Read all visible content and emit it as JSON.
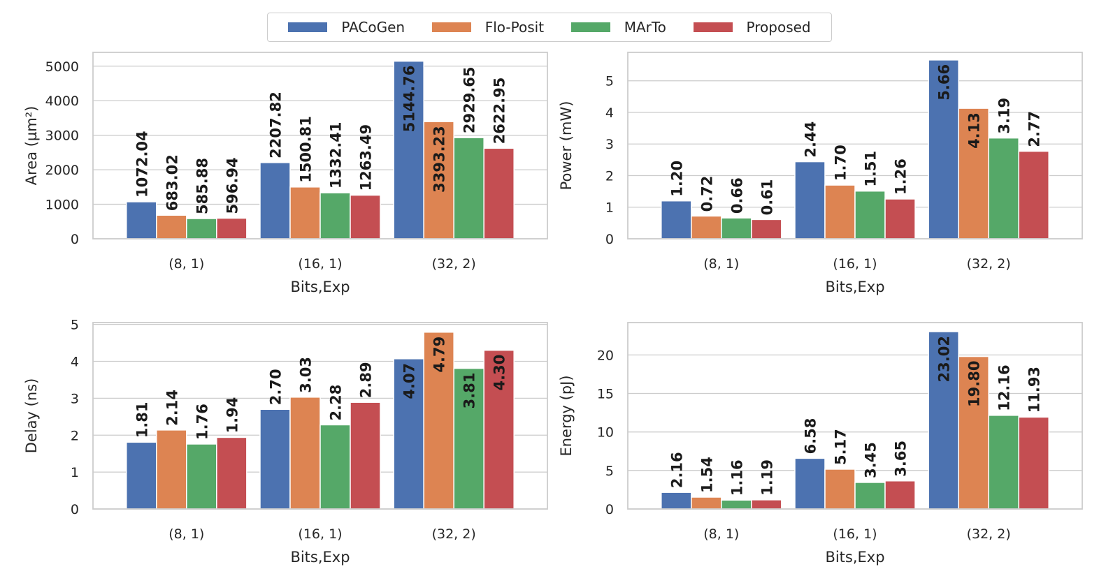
{
  "legend": {
    "items": [
      {
        "name": "PACoGen",
        "color": "#4c72b0"
      },
      {
        "name": "Flo-Posit",
        "color": "#dd8452"
      },
      {
        "name": "MArTo",
        "color": "#55a868"
      },
      {
        "name": "Proposed",
        "color": "#c44e52"
      }
    ]
  },
  "chart_data": [
    {
      "type": "bar",
      "categories": [
        "(8, 1)",
        "(16, 1)",
        "(32, 2)"
      ],
      "xlabel": "Bits,Exp",
      "ylabel": "Area (µm²)",
      "ylim": [
        0,
        5400
      ],
      "yticks": [
        0,
        1000,
        2000,
        3000,
        4000,
        5000
      ],
      "grid": true,
      "series": [
        {
          "name": "PACoGen",
          "values": [
            1072.04,
            2207.82,
            5144.76
          ],
          "labels": [
            "1072.04",
            "2207.82",
            "5144.76"
          ]
        },
        {
          "name": "Flo-Posit",
          "values": [
            683.02,
            1500.81,
            3393.23
          ],
          "labels": [
            "683.02",
            "1500.81",
            "3393.23"
          ]
        },
        {
          "name": "MArTo",
          "values": [
            585.88,
            1332.41,
            2929.65
          ],
          "labels": [
            "585.88",
            "1332.41",
            "2929.65"
          ]
        },
        {
          "name": "Proposed",
          "values": [
            596.94,
            1263.49,
            2622.95
          ],
          "labels": [
            "596.94",
            "1263.49",
            "2622.95"
          ]
        }
      ]
    },
    {
      "type": "bar",
      "categories": [
        "(8, 1)",
        "(16, 1)",
        "(32, 2)"
      ],
      "xlabel": "Bits,Exp",
      "ylabel": "Power (mW)",
      "ylim": [
        0,
        5.9
      ],
      "yticks": [
        0,
        1,
        2,
        3,
        4,
        5
      ],
      "grid": true,
      "series": [
        {
          "name": "PACoGen",
          "values": [
            1.2,
            2.44,
            5.66
          ],
          "labels": [
            "1.20",
            "2.44",
            "5.66"
          ]
        },
        {
          "name": "Flo-Posit",
          "values": [
            0.72,
            1.7,
            4.13
          ],
          "labels": [
            "0.72",
            "1.70",
            "4.13"
          ]
        },
        {
          "name": "MArTo",
          "values": [
            0.66,
            1.51,
            3.19
          ],
          "labels": [
            "0.66",
            "1.51",
            "3.19"
          ]
        },
        {
          "name": "Proposed",
          "values": [
            0.61,
            1.26,
            2.77
          ],
          "labels": [
            "0.61",
            "1.26",
            "2.77"
          ]
        }
      ]
    },
    {
      "type": "bar",
      "categories": [
        "(8, 1)",
        "(16, 1)",
        "(32, 2)"
      ],
      "xlabel": "Bits,Exp",
      "ylabel": "Delay (ns)",
      "ylim": [
        0,
        5.05
      ],
      "yticks": [
        0,
        1,
        2,
        3,
        4,
        5
      ],
      "grid": true,
      "series": [
        {
          "name": "PACoGen",
          "values": [
            1.81,
            2.7,
            4.07
          ],
          "labels": [
            "1.81",
            "2.70",
            "4.07"
          ]
        },
        {
          "name": "Flo-Posit",
          "values": [
            2.14,
            3.03,
            4.79
          ],
          "labels": [
            "2.14",
            "3.03",
            "4.79"
          ]
        },
        {
          "name": "MArTo",
          "values": [
            1.76,
            2.28,
            3.81
          ],
          "labels": [
            "1.76",
            "2.28",
            "3.81"
          ]
        },
        {
          "name": "Proposed",
          "values": [
            1.94,
            2.89,
            4.3
          ],
          "labels": [
            "1.94",
            "2.89",
            "4.30"
          ]
        }
      ]
    },
    {
      "type": "bar",
      "categories": [
        "(8, 1)",
        "(16, 1)",
        "(32, 2)"
      ],
      "xlabel": "Bits,Exp",
      "ylabel": "Energy (pJ)",
      "ylim": [
        0,
        24.2
      ],
      "yticks": [
        0,
        5,
        10,
        15,
        20
      ],
      "grid": true,
      "series": [
        {
          "name": "PACoGen",
          "values": [
            2.16,
            6.58,
            23.02
          ],
          "labels": [
            "2.16",
            "6.58",
            "23.02"
          ]
        },
        {
          "name": "Flo-Posit",
          "values": [
            1.54,
            5.17,
            19.8
          ],
          "labels": [
            "1.54",
            "5.17",
            "19.80"
          ]
        },
        {
          "name": "MArTo",
          "values": [
            1.16,
            3.45,
            12.16
          ],
          "labels": [
            "1.16",
            "3.45",
            "12.16"
          ]
        },
        {
          "name": "Proposed",
          "values": [
            1.19,
            3.65,
            11.93
          ],
          "labels": [
            "1.19",
            "3.65",
            "11.93"
          ]
        }
      ]
    }
  ]
}
